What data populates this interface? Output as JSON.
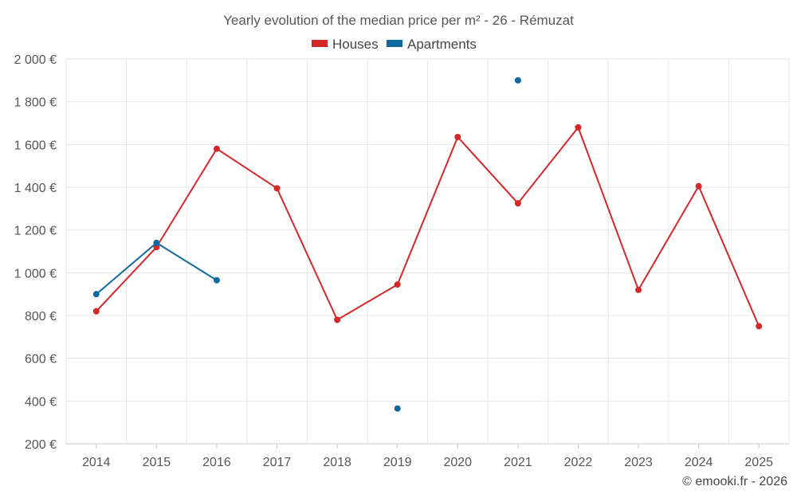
{
  "chart_data": {
    "type": "line",
    "title": "Yearly evolution of the median price per m² - 26 - Rémuzat",
    "categories": [
      "2014",
      "2015",
      "2016",
      "2017",
      "2018",
      "2019",
      "2020",
      "2021",
      "2022",
      "2023",
      "2024",
      "2025"
    ],
    "ylim": [
      200,
      2000
    ],
    "yticks": [
      200,
      400,
      600,
      800,
      1000,
      1200,
      1400,
      1600,
      1800,
      2000
    ],
    "ytick_labels": [
      "200 €",
      "400 €",
      "600 €",
      "800 €",
      "1 000 €",
      "1 200 €",
      "1 400 €",
      "1 600 €",
      "1 800 €",
      "2 000 €"
    ],
    "grid": true,
    "legend_position": "top-center",
    "series": [
      {
        "name": "Houses",
        "color": "#d62728",
        "values": [
          820,
          1120,
          1580,
          1395,
          780,
          945,
          1635,
          1325,
          1680,
          920,
          1405,
          750
        ]
      },
      {
        "name": "Apartments",
        "color": "#0f6aa0",
        "values": [
          900,
          1140,
          965,
          null,
          null,
          365,
          null,
          1900,
          null,
          null,
          null,
          null
        ]
      }
    ],
    "credit": "© emooki.fr - 2026"
  }
}
